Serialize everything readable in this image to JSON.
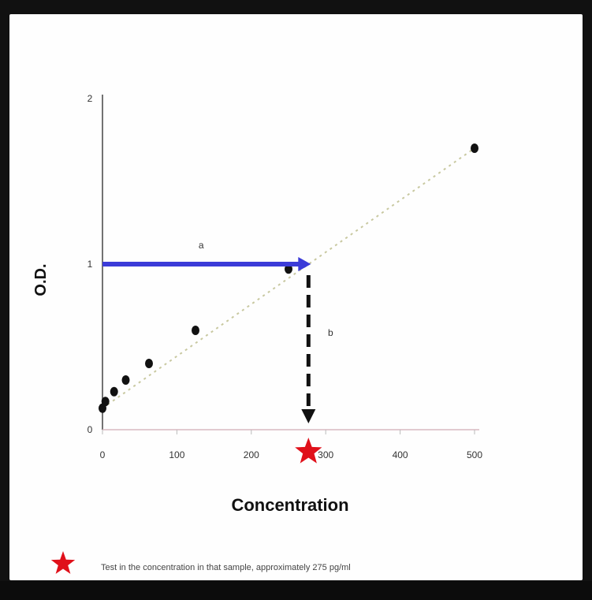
{
  "chart_data": {
    "type": "scatter",
    "xlabel": "Concentration",
    "ylabel": "O.D.",
    "xlim": [
      0,
      500
    ],
    "ylim": [
      0,
      2
    ],
    "x_ticks": [
      "0",
      "100",
      "200",
      "300",
      "400",
      "500"
    ],
    "y_ticks": [
      "0",
      "1",
      "2"
    ],
    "points": [
      {
        "x": 0,
        "y": 0.13
      },
      {
        "x": 3.9,
        "y": 0.17
      },
      {
        "x": 15.6,
        "y": 0.23
      },
      {
        "x": 31.25,
        "y": 0.3
      },
      {
        "x": 62.5,
        "y": 0.4
      },
      {
        "x": 125,
        "y": 0.6
      },
      {
        "x": 250,
        "y": 0.97
      },
      {
        "x": 500,
        "y": 1.7
      }
    ],
    "trendline": {
      "x0": 0,
      "y0": 0.13,
      "x1": 500,
      "y1": 1.7,
      "color": "#c8c8a0",
      "style": "dotted"
    },
    "sample": {
      "x": 280,
      "y": 1.0
    },
    "annotations": [
      {
        "label": "a",
        "color": "#3b3bd8"
      },
      {
        "label": "b",
        "color": "#111111"
      }
    ],
    "marker_colors": {
      "points": "#111111",
      "star": "#e0101a"
    }
  },
  "note": {
    "text": "Test in the concentration in that sample, approximately 275 pg/ml"
  }
}
